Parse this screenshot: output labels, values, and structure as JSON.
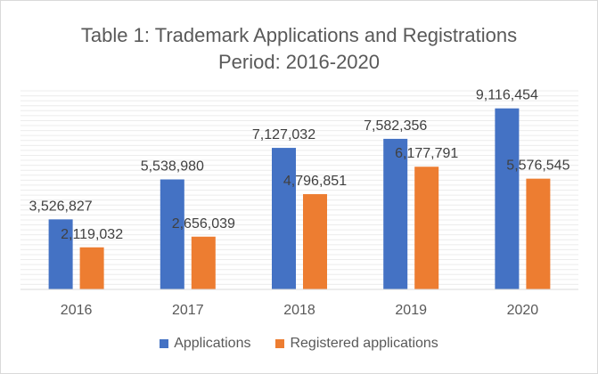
{
  "chart_data": {
    "type": "bar",
    "title_line1": "Table 1: Trademark Applications and Registrations",
    "title_line2": "Period: 2016-2020",
    "categories": [
      "2016",
      "2017",
      "2018",
      "2019",
      "2020"
    ],
    "series": [
      {
        "name": "Applications",
        "color": "#4472c4",
        "values": [
          3526827,
          5538980,
          7127032,
          7582356,
          9116454
        ],
        "labels": [
          "3,526,827",
          "5,538,980",
          "7,127,032",
          "7,582,356",
          "9,116,454"
        ]
      },
      {
        "name": "Registered applications",
        "color": "#ed7d31",
        "values": [
          2119032,
          2656039,
          4796851,
          6177791,
          5576545
        ],
        "labels": [
          "2,119,032",
          "2,656,039",
          "4,796,851",
          "6,177,791",
          "5,576,545"
        ]
      }
    ],
    "ylim": [
      0,
      10000000
    ],
    "y_axis_labels_shown": false,
    "grid": true,
    "legend_position": "bottom"
  }
}
